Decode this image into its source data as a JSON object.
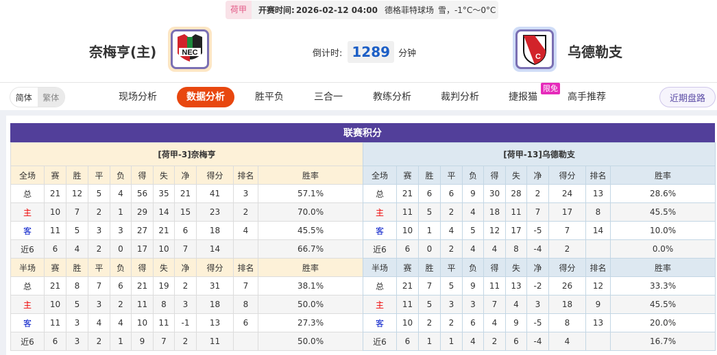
{
  "match": {
    "league": "荷甲",
    "time_label": "开赛时间:",
    "time": "2026-02-12 04:00",
    "venue": "德格菲特球场",
    "weather": "雪，-1°C～0°C",
    "home": "奈梅亨(主)",
    "away": "乌德勒支",
    "countdown_label": "倒计时:",
    "countdown": "1289",
    "countdown_unit": "分钟",
    "home_logo_text": "NEC",
    "away_logo_text": "FC"
  },
  "nav": {
    "simplified": "简体",
    "traditional": "繁体",
    "items": [
      "现场分析",
      "数据分析",
      "胜平负",
      "三合一",
      "教练分析",
      "裁判分析",
      "捷报猫",
      "高手推荐"
    ],
    "active": "数据分析",
    "badge": "限免",
    "recent": "近期盘路"
  },
  "standings": {
    "title": "联赛积分",
    "columns_full": [
      "全场",
      "赛",
      "胜",
      "平",
      "负",
      "得",
      "失",
      "净",
      "得分",
      "排名",
      "胜率"
    ],
    "columns_half": [
      "半场",
      "赛",
      "胜",
      "平",
      "负",
      "得",
      "失",
      "净",
      "得分",
      "排名",
      "胜率"
    ],
    "home": {
      "team": "[荷甲-3]奈梅亨",
      "full": [
        [
          "总",
          "21",
          "12",
          "5",
          "4",
          "56",
          "35",
          "21",
          "41",
          "3",
          "57.1%"
        ],
        [
          "主",
          "10",
          "7",
          "2",
          "1",
          "29",
          "14",
          "15",
          "23",
          "2",
          "70.0%"
        ],
        [
          "客",
          "11",
          "5",
          "3",
          "3",
          "27",
          "21",
          "6",
          "18",
          "4",
          "45.5%"
        ],
        [
          "近6",
          "6",
          "4",
          "2",
          "0",
          "17",
          "10",
          "7",
          "14",
          "",
          "66.7%"
        ]
      ],
      "half": [
        [
          "总",
          "21",
          "8",
          "7",
          "6",
          "21",
          "19",
          "2",
          "31",
          "7",
          "38.1%"
        ],
        [
          "主",
          "10",
          "5",
          "3",
          "2",
          "11",
          "8",
          "3",
          "18",
          "8",
          "50.0%"
        ],
        [
          "客",
          "11",
          "3",
          "4",
          "4",
          "10",
          "11",
          "-1",
          "13",
          "6",
          "27.3%"
        ],
        [
          "近6",
          "6",
          "3",
          "2",
          "1",
          "9",
          "7",
          "2",
          "11",
          "",
          "50.0%"
        ]
      ]
    },
    "away": {
      "team": "[荷甲-13]乌德勒支",
      "full": [
        [
          "总",
          "21",
          "6",
          "6",
          "9",
          "30",
          "28",
          "2",
          "24",
          "13",
          "28.6%"
        ],
        [
          "主",
          "11",
          "5",
          "2",
          "4",
          "18",
          "11",
          "7",
          "17",
          "8",
          "45.5%"
        ],
        [
          "客",
          "10",
          "1",
          "4",
          "5",
          "12",
          "17",
          "-5",
          "7",
          "14",
          "10.0%"
        ],
        [
          "近6",
          "6",
          "0",
          "2",
          "4",
          "4",
          "8",
          "-4",
          "2",
          "",
          "0.0%"
        ]
      ],
      "half": [
        [
          "总",
          "21",
          "7",
          "5",
          "9",
          "11",
          "13",
          "-2",
          "26",
          "12",
          "33.3%"
        ],
        [
          "主",
          "11",
          "5",
          "3",
          "3",
          "7",
          "4",
          "3",
          "18",
          "9",
          "45.5%"
        ],
        [
          "客",
          "10",
          "2",
          "2",
          "6",
          "4",
          "9",
          "-5",
          "8",
          "13",
          "20.0%"
        ],
        [
          "近6",
          "6",
          "1",
          "1",
          "4",
          "2",
          "6",
          "-4",
          "4",
          "",
          "16.7%"
        ]
      ]
    }
  },
  "colors": {
    "title_bg": "#523f9a",
    "active_nav": "#e8470f",
    "home_label": "#e00000",
    "away_label": "#0018c8"
  }
}
